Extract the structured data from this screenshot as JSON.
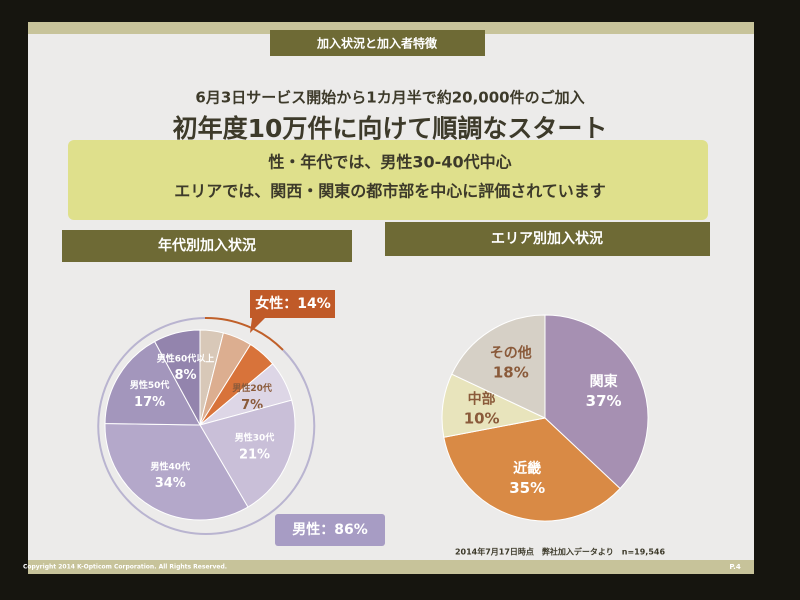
{
  "header": {
    "tab": "加入状況と加入者特徴",
    "lead": "6月3日サービス開始から1カ月半で約20,000件のご加入",
    "headline": "初年度10万件に向けて順調なスタート"
  },
  "summary": [
    "性・年代では、男性30-40代中心",
    "エリアでは、関西・関東の都市部を中心に評価されています"
  ],
  "chart_data": [
    {
      "type": "pie",
      "title": "年代別加入状況",
      "categories": [
        null,
        null,
        null,
        "男性20代",
        "男性30代",
        "男性40代",
        "男性50代",
        "男性60代以上"
      ],
      "values": [
        4,
        5,
        5,
        7,
        21,
        34,
        17,
        8
      ],
      "value_labels": [
        null,
        null,
        null,
        "7%",
        "21%",
        "34%",
        "17%",
        "8%"
      ],
      "colors": [
        "#d8c8b8",
        "#dcae90",
        "#d8733a",
        "#ddd6e6",
        "#c9bfd8",
        "#b4a8ca",
        "#a396bc",
        "#9384ad"
      ],
      "annotations": [
        "女性：14%",
        "男性：86%"
      ]
    },
    {
      "type": "pie",
      "title": "エリア別加入状況",
      "categories": [
        "関東",
        "近畿",
        "中部",
        "その他"
      ],
      "values": [
        37,
        35,
        10,
        18
      ],
      "value_labels": [
        "37%",
        "35%",
        "10%",
        "18%"
      ],
      "colors": [
        "#a690b2",
        "#d98a45",
        "#e8e4bc",
        "#d6d0c6"
      ]
    }
  ],
  "footer": {
    "note": "2014年7月17日時点　弊社加入データより　n=19,546",
    "copyright": "Copyright 2014 K-Opticom Corporation. All Rights Reserved.",
    "page": "P.4"
  }
}
